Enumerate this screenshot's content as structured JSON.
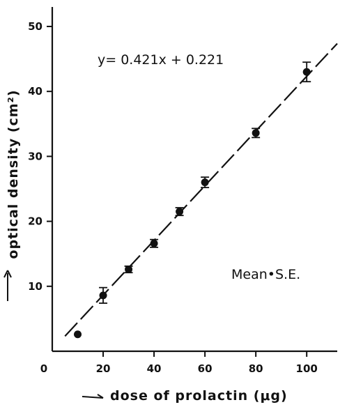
{
  "chart_data": {
    "type": "scatter",
    "xlabel": "dose  of  prolactin  (μg)",
    "ylabel": "optical  density  (cm²)",
    "xlim": [
      0,
      112
    ],
    "ylim": [
      0,
      53
    ],
    "xticks": [
      0,
      20,
      40,
      60,
      80,
      100
    ],
    "yticks": [
      10,
      20,
      30,
      40,
      50
    ],
    "equation": "y= 0.421x + 0.221",
    "legend": "Mean•S.E.",
    "fit_line": {
      "slope": 0.421,
      "intercept": 0.221,
      "x_range": [
        5,
        112
      ],
      "style": "dashed"
    },
    "series": [
      {
        "points": [
          {
            "x": 10,
            "y": 2.6,
            "se": 0
          },
          {
            "x": 20,
            "y": 8.6,
            "se": 1.2
          },
          {
            "x": 30,
            "y": 12.6,
            "se": 0.5
          },
          {
            "x": 40,
            "y": 16.6,
            "se": 0.6
          },
          {
            "x": 50,
            "y": 21.5,
            "se": 0.6
          },
          {
            "x": 60,
            "y": 26.0,
            "se": 0.8
          },
          {
            "x": 80,
            "y": 33.6,
            "se": 0.7
          },
          {
            "x": 100,
            "y": 43.0,
            "se": 1.5
          }
        ]
      }
    ],
    "grid": false
  }
}
